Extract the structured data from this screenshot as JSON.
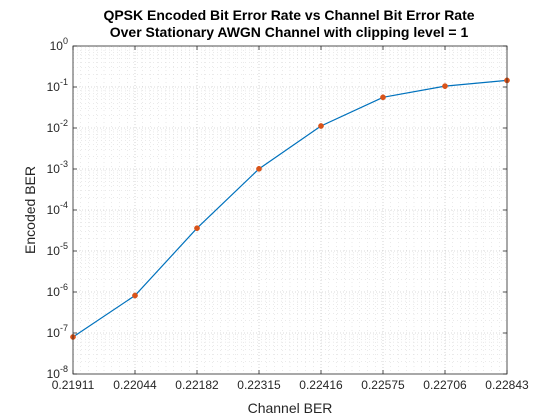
{
  "chart_data": {
    "type": "line",
    "title": "QPSK Encoded Bit Error Rate vs Channel Bit Error Rate",
    "subtitle": "Over Stationary AWGN Channel with clipping level = 1",
    "xlabel": "Channel BER",
    "ylabel": "Encoded BER",
    "x_ticks": [
      "0.21911",
      "0.22044",
      "0.22182",
      "0.22315",
      "0.22416",
      "0.22575",
      "0.22706",
      "0.22843"
    ],
    "y_scale": "log",
    "y_ticks": [
      {
        "base": "10",
        "exp": "-8"
      },
      {
        "base": "10",
        "exp": "-7"
      },
      {
        "base": "10",
        "exp": "-6"
      },
      {
        "base": "10",
        "exp": "-5"
      },
      {
        "base": "10",
        "exp": "-4"
      },
      {
        "base": "10",
        "exp": "-3"
      },
      {
        "base": "10",
        "exp": "-2"
      },
      {
        "base": "10",
        "exp": "-1"
      },
      {
        "base": "10",
        "exp": "0"
      }
    ],
    "ylim": [
      1e-08,
      1
    ],
    "grid": true,
    "series": [
      {
        "values": [
          8e-08,
          8.2e-07,
          3.6e-05,
          0.00101,
          0.0112,
          0.056,
          0.105,
          0.145
        ],
        "line_color": "#0072BD",
        "marker_color": "#D95319"
      }
    ]
  }
}
